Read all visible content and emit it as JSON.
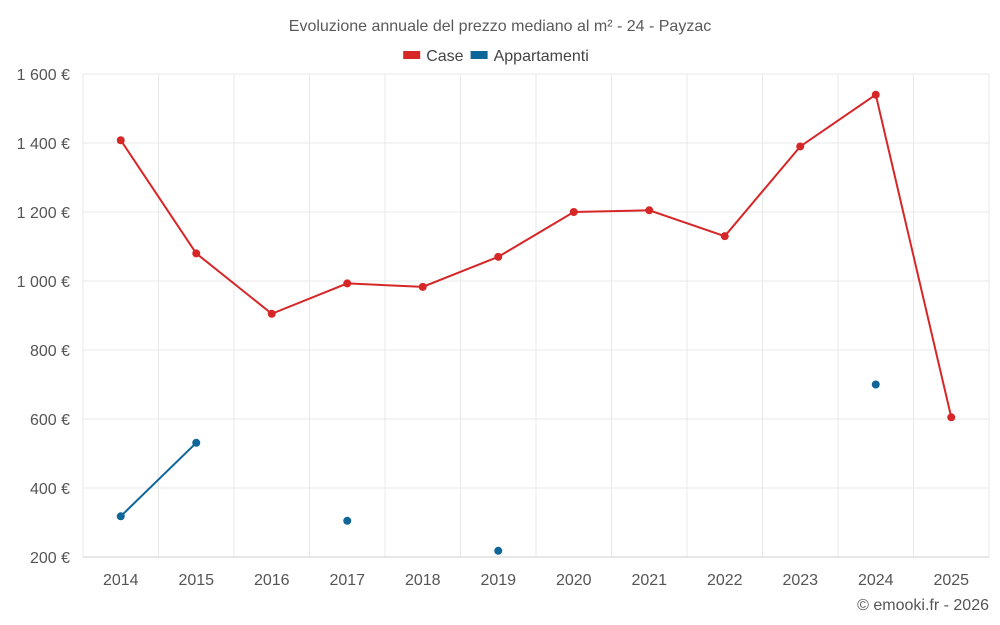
{
  "chart_data": {
    "type": "line",
    "title": "Evoluzione annuale del prezzo mediano al m² - 24 - Payzac",
    "categories": [
      "2014",
      "2015",
      "2016",
      "2017",
      "2018",
      "2019",
      "2020",
      "2021",
      "2022",
      "2023",
      "2024",
      "2025"
    ],
    "ylim": [
      200,
      1600
    ],
    "yticks": [
      200,
      400,
      600,
      800,
      1000,
      1200,
      1400,
      1600
    ],
    "ytick_labels": [
      "200 €",
      "400 €",
      "600 €",
      "800 €",
      "1 000 €",
      "1 200 €",
      "1 400 €",
      "1 600 €"
    ],
    "series": [
      {
        "name": "Case",
        "color": "#d62728",
        "values": [
          1408,
          1080,
          905,
          993,
          983,
          1070,
          1200,
          1205,
          1130,
          1390,
          1540,
          605
        ]
      },
      {
        "name": "Appartamenti",
        "color": "#0f6699",
        "values": [
          318,
          531,
          null,
          305,
          null,
          218,
          null,
          null,
          null,
          null,
          700,
          null
        ]
      }
    ],
    "grid": true,
    "legend": "top-center"
  },
  "credit": "© emooki.fr - 2026"
}
